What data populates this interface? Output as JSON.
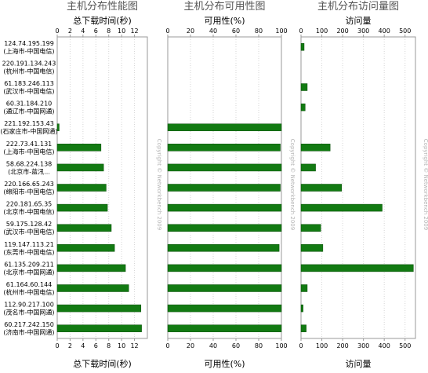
{
  "hosts": [
    {
      "ip": "124.74.195.199",
      "loc": "(上海市-中国电信)"
    },
    {
      "ip": "220.191.134.243",
      "loc": "(杭州市-中国电信)"
    },
    {
      "ip": "61.183.246.113",
      "loc": "(武汉市-中国电信)"
    },
    {
      "ip": "60.31.184.210",
      "loc": "(通辽市-中国网通)"
    },
    {
      "ip": "221.192.153.43",
      "loc": "(石家庄市-中国网通)"
    },
    {
      "ip": "222.73.41.131",
      "loc": "(上海市-中国电信)"
    },
    {
      "ip": "58.68.224.138",
      "loc": "(北京市-蓝汛..."
    },
    {
      "ip": "220.166.65.243",
      "loc": "(绵阳市-中国电信)"
    },
    {
      "ip": "220.181.65.35",
      "loc": "(北京市-中国电信)"
    },
    {
      "ip": "59.175.128.42",
      "loc": "(武汉市-中国电信)"
    },
    {
      "ip": "119.147.113.21",
      "loc": "(东莞市-中国电信)"
    },
    {
      "ip": "61.135.209.211",
      "loc": "(北京市-中国网通)"
    },
    {
      "ip": "61.164.60.144",
      "loc": "(杭州市-中国电信)"
    },
    {
      "ip": "112.90.217.100",
      "loc": "(茂名市-中国网通)"
    },
    {
      "ip": "60.217.242.150",
      "loc": "(济南市-中国网通)"
    }
  ],
  "copyright": "Copyright © Networkbench 2009",
  "chart_data": [
    {
      "type": "bar",
      "orientation": "horizontal",
      "title": "主机分布性能图",
      "xlabel": "总下载时间(秒)",
      "xlim": [
        0,
        14
      ],
      "ticks": [
        0,
        2,
        4,
        6,
        8,
        10,
        12
      ],
      "grid": true,
      "categories": [
        "124.74.195.199",
        "220.191.134.243",
        "61.183.246.113",
        "60.31.184.210",
        "221.192.153.43",
        "222.73.41.131",
        "58.68.224.138",
        "220.166.65.243",
        "220.181.65.35",
        "59.175.128.42",
        "119.147.113.21",
        "61.135.209.211",
        "61.164.60.144",
        "112.90.217.100",
        "60.217.242.150"
      ],
      "values": [
        null,
        null,
        null,
        null,
        0.3,
        6.8,
        7.2,
        7.6,
        7.8,
        8.4,
        8.9,
        10.6,
        11.1,
        13.0,
        13.1
      ],
      "color": "#127a12"
    },
    {
      "type": "bar",
      "orientation": "horizontal",
      "title": "主机分布可用性图",
      "xlabel": "可用性(%)",
      "xlim": [
        0,
        100
      ],
      "ticks": [
        0,
        20,
        40,
        60,
        80,
        100
      ],
      "grid": true,
      "categories": [
        "124.74.195.199",
        "220.191.134.243",
        "61.183.246.113",
        "60.31.184.210",
        "221.192.153.43",
        "222.73.41.131",
        "58.68.224.138",
        "220.166.65.243",
        "220.181.65.35",
        "59.175.128.42",
        "119.147.113.21",
        "61.135.209.211",
        "61.164.60.144",
        "112.90.217.100",
        "60.217.242.150"
      ],
      "values": [
        null,
        null,
        null,
        null,
        100,
        99,
        100,
        99,
        100,
        100,
        98,
        100,
        100,
        100,
        100
      ],
      "color": "#127a12"
    },
    {
      "type": "bar",
      "orientation": "horizontal",
      "title": "主机分布访问量图",
      "xlabel": "访问量",
      "xlim": [
        0,
        550
      ],
      "ticks": [
        0,
        100,
        200,
        300,
        400,
        500
      ],
      "grid": true,
      "categories": [
        "124.74.195.199",
        "220.191.134.243",
        "61.183.246.113",
        "60.31.184.210",
        "221.192.153.43",
        "222.73.41.131",
        "58.68.224.138",
        "220.166.65.243",
        "220.181.65.35",
        "59.175.128.42",
        "119.147.113.21",
        "61.135.209.211",
        "61.164.60.144",
        "112.90.217.100",
        "60.217.242.150"
      ],
      "values": [
        15,
        0,
        30,
        20,
        0,
        140,
        70,
        195,
        390,
        95,
        105,
        540,
        30,
        10,
        25
      ],
      "color": "#127a12"
    }
  ]
}
